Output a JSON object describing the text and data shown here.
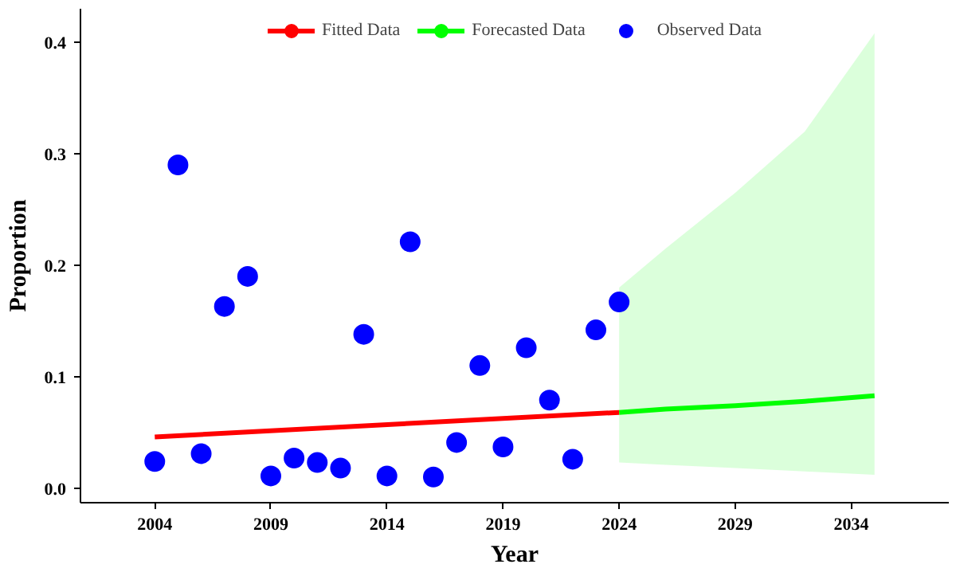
{
  "chart_data": {
    "type": "line",
    "xlabel": "Year",
    "ylabel": "Proportion",
    "xlim": [
      2000.8,
      2038.2
    ],
    "ylim": [
      -0.013,
      0.43
    ],
    "xticks": [
      2004,
      2009,
      2014,
      2019,
      2024,
      2029,
      2034
    ],
    "yticks": [
      {
        "value": 0,
        "label": "0.0"
      },
      0.1,
      0.2,
      0.3,
      0.4
    ],
    "grid": false,
    "legend": "top",
    "series": [
      {
        "name": "Fitted Data",
        "color": "#ff0000",
        "x": [
          2004,
          2024
        ],
        "values": [
          0.046,
          0.068
        ]
      },
      {
        "name": "Forecasted Data",
        "color": "#00ff00",
        "x": [
          2024,
          2026,
          2029,
          2032,
          2035
        ],
        "values": [
          0.068,
          0.071,
          0.074,
          0.078,
          0.083
        ],
        "lower": [
          0.023,
          0.021,
          0.018,
          0.015,
          0.012
        ],
        "upper": [
          0.18,
          0.215,
          0.265,
          0.32,
          0.408
        ]
      },
      {
        "name": "Observed Data",
        "type": "scatter",
        "color": "#0000ff",
        "x": [
          2004,
          2005,
          2006,
          2007,
          2008,
          2009,
          2010,
          2011,
          2012,
          2013,
          2014,
          2015,
          2016,
          2017,
          2018,
          2019,
          2020,
          2021,
          2022,
          2023,
          2024
        ],
        "values": [
          0.024,
          0.29,
          0.031,
          0.163,
          0.19,
          0.011,
          0.027,
          0.023,
          0.018,
          0.138,
          0.011,
          0.221,
          0.01,
          0.041,
          0.11,
          0.037,
          0.126,
          0.079,
          0.026,
          0.142,
          0.167
        ]
      }
    ]
  }
}
